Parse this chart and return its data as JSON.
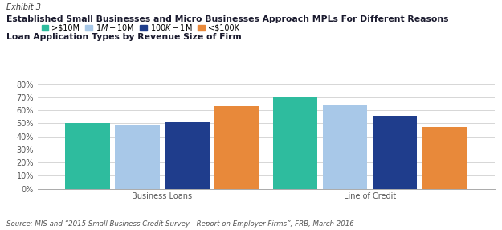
{
  "exhibit_label": "Exhibit 3",
  "title_line1": "Established Small Businesses and Micro Businesses Approach MPLs For Different Reasons",
  "title_line2": "Loan Application Types by Revenue Size of Firm",
  "source": "Source: MIS and “2015 Small Business Credit Survey - Report on Employer Firms”, FRB, March 2016",
  "groups": [
    "Business Loans",
    "Line of Credit"
  ],
  "series_labels": [
    ">$10M",
    "$1M-$10M",
    "$100K-$1M",
    "<$100K"
  ],
  "colors": [
    "#2ebc9e",
    "#a8c8e8",
    "#1f3d8c",
    "#e8893a"
  ],
  "values": [
    [
      0.5,
      0.49,
      0.51,
      0.63
    ],
    [
      0.7,
      0.64,
      0.56,
      0.47
    ]
  ],
  "ylim": [
    0,
    0.88
  ],
  "yticks": [
    0.0,
    0.1,
    0.2,
    0.3,
    0.4,
    0.5,
    0.6,
    0.7,
    0.8
  ],
  "yticklabels": [
    "0%",
    "10%",
    "20%",
    "30%",
    "40%",
    "50%",
    "60%",
    "70%",
    "80%"
  ],
  "background_color": "#ffffff",
  "bar_width": 0.12,
  "group_centers": [
    0.3,
    0.8
  ]
}
